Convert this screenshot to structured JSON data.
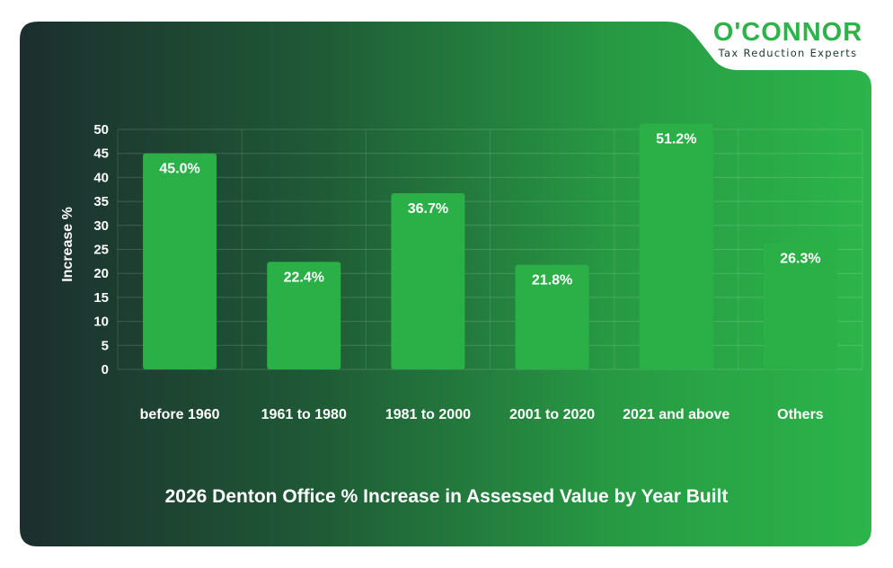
{
  "brand": {
    "name": "O'CONNOR",
    "tagline": "Tax Reduction Experts",
    "colors": {
      "green": "#2db34a",
      "dark": "#1c2e2e"
    }
  },
  "chart_data": {
    "type": "bar",
    "title": "2026 Denton Office % Increase in Assessed Value by Year Built",
    "xlabel": "",
    "ylabel": "Increase %",
    "categories": [
      "before 1960",
      "1961 to 1980",
      "1981 to 2000",
      "2001 to 2020",
      "2021 and above",
      "Others"
    ],
    "values": [
      45.0,
      22.4,
      36.7,
      21.8,
      51.2,
      26.3
    ],
    "data_labels": [
      "45.0%",
      "22.4%",
      "36.7%",
      "21.8%",
      "51.2%",
      "26.3%"
    ],
    "ylim": [
      0,
      50
    ],
    "yticks": [
      0,
      5,
      10,
      15,
      20,
      25,
      30,
      35,
      40,
      45,
      50
    ],
    "grid": true,
    "bar_color": "#2bb048"
  }
}
